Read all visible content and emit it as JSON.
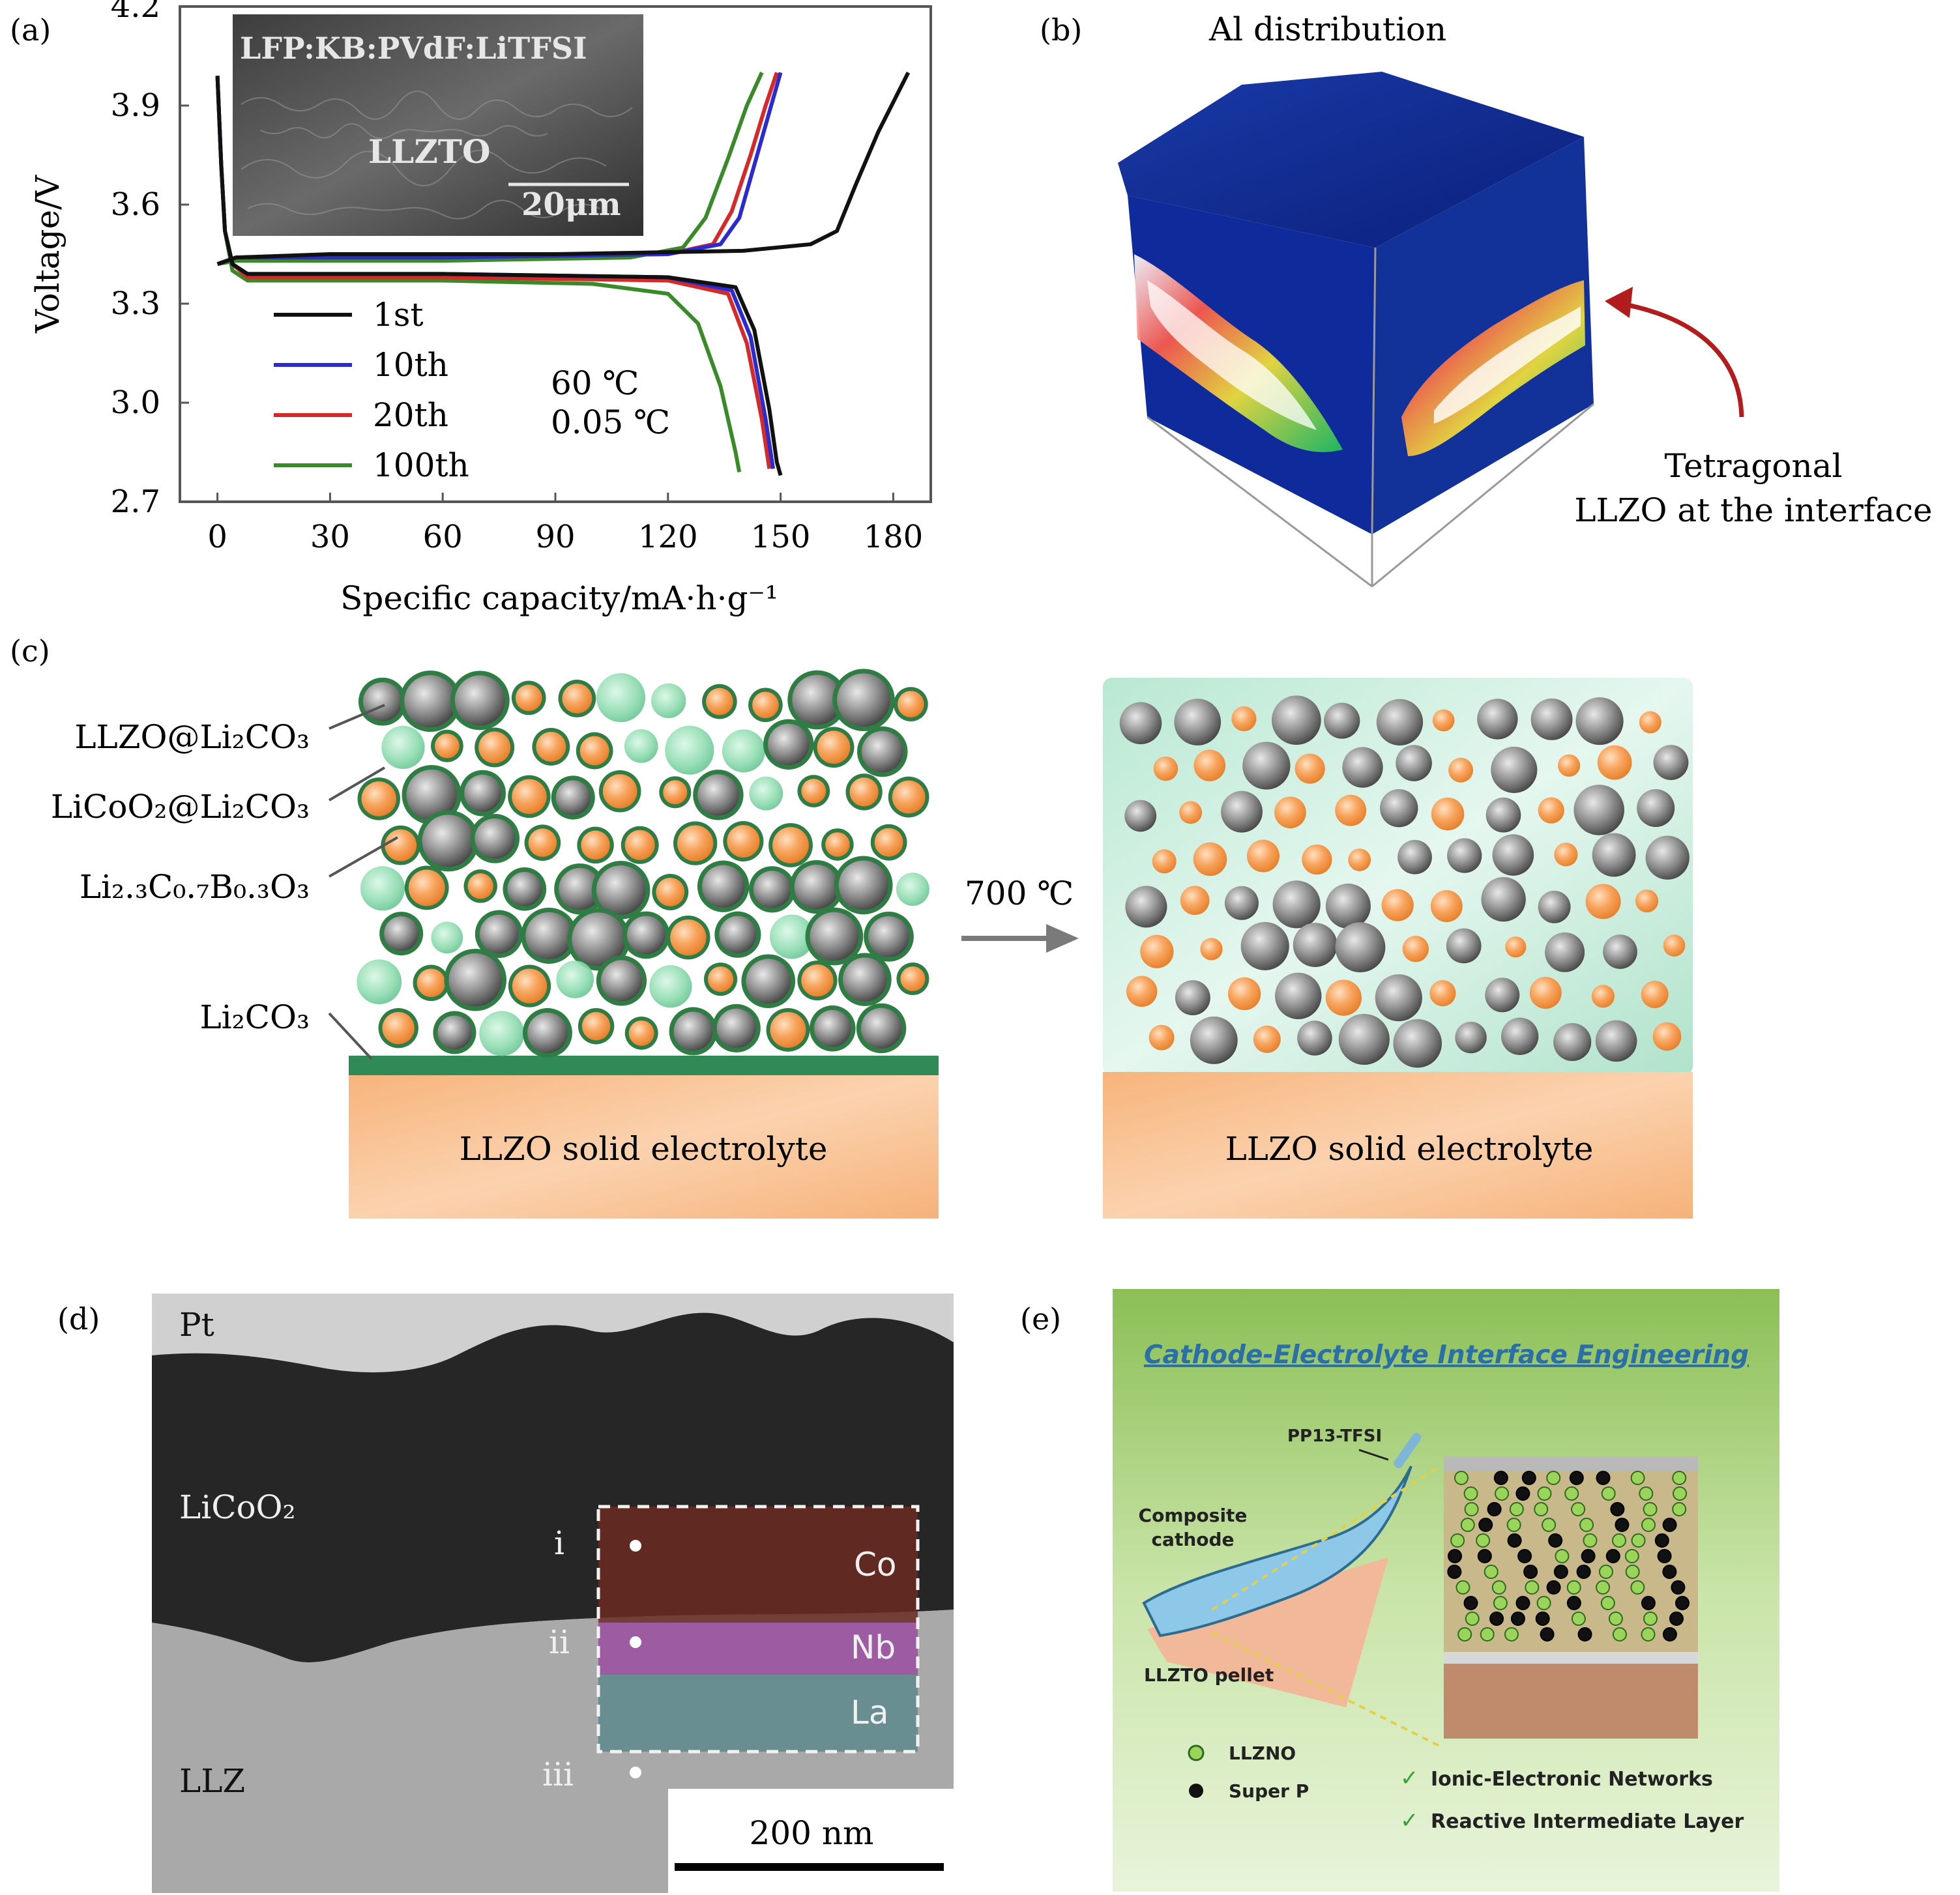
{
  "panels": {
    "a": {
      "label": "(a)",
      "inset": {
        "material": "LFP:KB:PVdF:LiTFSI",
        "substrate": "LLZTO",
        "scale": "20μm"
      },
      "legend": [
        "1st",
        "10th",
        "20th",
        "100th"
      ],
      "conditions": [
        "60 ℃",
        "0.05 ℃"
      ]
    },
    "b": {
      "label": "(b)",
      "title": "Al distribution",
      "annotation_line1": "Tetragonal",
      "annotation_line2": "LLZO at the interface"
    },
    "c": {
      "label": "(c)",
      "labels": [
        "LLZO@Li₂CO₃",
        "LiCoO₂@Li₂CO₃",
        "Li₂.₃C₀.₇B₀.₃O₃",
        "Li₂CO₃"
      ],
      "arrow_label": "700 ℃",
      "substrate_left": "LLZO solid electrolyte",
      "substrate_right": "LLZO solid electrolyte"
    },
    "d": {
      "label": "(d)",
      "layers": [
        "Pt",
        "LiCoO₂",
        "LLZ"
      ],
      "points": [
        "i",
        "ii",
        "iii"
      ],
      "elements": [
        "Co",
        "Nb",
        "La"
      ],
      "scale_bar": "200 nm"
    },
    "e": {
      "label": "(e)",
      "title": "Cathode-Electrolyte Interface Engineering",
      "pp13": "PP13-TFSI",
      "composite_line1": "Composite",
      "composite_line2": "cathode",
      "pellet": "LLZTO pellet",
      "legend": [
        "LLZNO",
        "Super P"
      ],
      "checks": [
        "Ionic-Electronic Networks",
        "Reactive Intermediate Layer"
      ]
    }
  },
  "colors": {
    "cycle_1": "#111111",
    "cycle_10": "#2b2bd0",
    "cycle_20": "#d42a2a",
    "cycle_100": "#3a8a2a",
    "orange": "#f4a35a",
    "gray": "#8a8a8a",
    "green_coat": "#2f7d45",
    "light_green": "#8fdcb0",
    "electrolyte": "#f9c194",
    "panel_e_bg": "#9cc96a"
  },
  "chart_data": {
    "type": "line",
    "title": "",
    "xlabel": "Specific capacity/mA·h·g⁻¹",
    "ylabel": "Voltage/V",
    "xlim": [
      -10,
      190
    ],
    "ylim": [
      2.7,
      4.2
    ],
    "xticks": [
      0,
      30,
      60,
      90,
      120,
      150,
      180
    ],
    "yticks": [
      2.7,
      3.0,
      3.3,
      3.6,
      3.9,
      4.2
    ],
    "legend_position": "bottom-left",
    "series": [
      {
        "name": "1st",
        "charge": [
          [
            0,
            3.42
          ],
          [
            5,
            3.44
          ],
          [
            30,
            3.45
          ],
          [
            90,
            3.45
          ],
          [
            140,
            3.46
          ],
          [
            158,
            3.48
          ],
          [
            165,
            3.52
          ],
          [
            170,
            3.66
          ],
          [
            176,
            3.82
          ],
          [
            184,
            4.0
          ]
        ],
        "discharge": [
          [
            0,
            3.99
          ],
          [
            1,
            3.72
          ],
          [
            2,
            3.52
          ],
          [
            4,
            3.42
          ],
          [
            8,
            3.39
          ],
          [
            60,
            3.39
          ],
          [
            120,
            3.38
          ],
          [
            138,
            3.35
          ],
          [
            143,
            3.22
          ],
          [
            147,
            2.98
          ],
          [
            149,
            2.82
          ],
          [
            150,
            2.78
          ]
        ]
      },
      {
        "name": "10th",
        "charge": [
          [
            0,
            3.42
          ],
          [
            5,
            3.44
          ],
          [
            60,
            3.44
          ],
          [
            120,
            3.45
          ],
          [
            134,
            3.48
          ],
          [
            139,
            3.56
          ],
          [
            143,
            3.72
          ],
          [
            147,
            3.88
          ],
          [
            150,
            4.0
          ]
        ],
        "discharge": [
          [
            0,
            3.99
          ],
          [
            1,
            3.72
          ],
          [
            2,
            3.52
          ],
          [
            4,
            3.42
          ],
          [
            8,
            3.39
          ],
          [
            60,
            3.39
          ],
          [
            120,
            3.38
          ],
          [
            137,
            3.34
          ],
          [
            142,
            3.2
          ],
          [
            146,
            2.95
          ],
          [
            148,
            2.8
          ]
        ]
      },
      {
        "name": "20th",
        "charge": [
          [
            0,
            3.42
          ],
          [
            5,
            3.44
          ],
          [
            60,
            3.44
          ],
          [
            120,
            3.45
          ],
          [
            132,
            3.48
          ],
          [
            137,
            3.58
          ],
          [
            142,
            3.75
          ],
          [
            146,
            3.9
          ],
          [
            149,
            4.0
          ]
        ],
        "discharge": [
          [
            0,
            3.99
          ],
          [
            1,
            3.72
          ],
          [
            2,
            3.52
          ],
          [
            4,
            3.42
          ],
          [
            8,
            3.38
          ],
          [
            60,
            3.38
          ],
          [
            120,
            3.37
          ],
          [
            136,
            3.33
          ],
          [
            141,
            3.18
          ],
          [
            145,
            2.95
          ],
          [
            147,
            2.8
          ]
        ]
      },
      {
        "name": "100th",
        "charge": [
          [
            0,
            3.42
          ],
          [
            5,
            3.43
          ],
          [
            60,
            3.43
          ],
          [
            110,
            3.44
          ],
          [
            124,
            3.47
          ],
          [
            130,
            3.56
          ],
          [
            136,
            3.74
          ],
          [
            141,
            3.9
          ],
          [
            145,
            4.0
          ]
        ],
        "discharge": [
          [
            0,
            3.99
          ],
          [
            1,
            3.72
          ],
          [
            2,
            3.52
          ],
          [
            4,
            3.4
          ],
          [
            8,
            3.37
          ],
          [
            60,
            3.37
          ],
          [
            100,
            3.36
          ],
          [
            120,
            3.33
          ],
          [
            128,
            3.24
          ],
          [
            134,
            3.05
          ],
          [
            138,
            2.85
          ],
          [
            139,
            2.79
          ]
        ]
      }
    ]
  }
}
